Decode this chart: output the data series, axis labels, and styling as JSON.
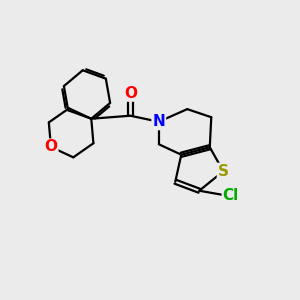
{
  "background_color": "#ebebeb",
  "atom_colors": {
    "O_carbonyl": "#ff0000",
    "O_ring": "#ff0000",
    "N": "#0000ff",
    "S": "#999900",
    "Cl": "#00aa00",
    "C": "#000000"
  },
  "bond_color": "#000000",
  "bond_width": 1.6,
  "figsize": [
    3.0,
    3.0
  ],
  "dpi": 100
}
